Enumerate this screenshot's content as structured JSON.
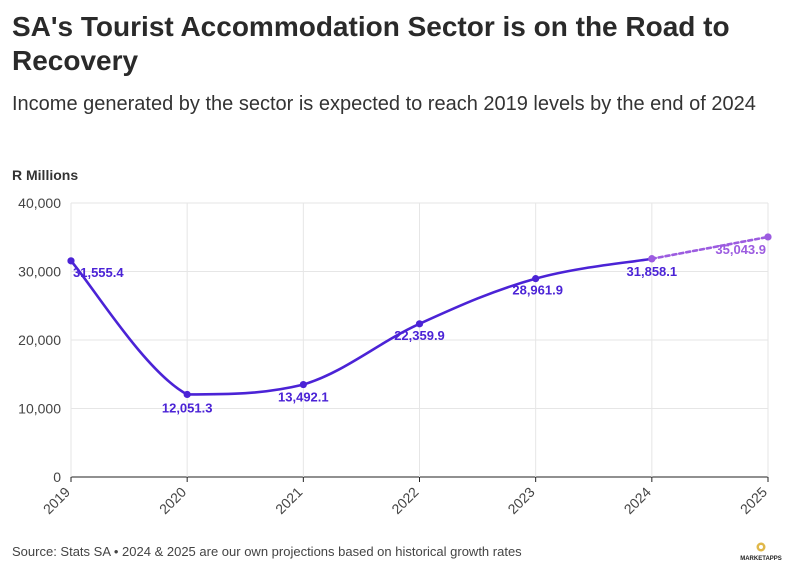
{
  "header": {
    "title": "SA's Tourist Accommodation Sector is on the Road to Recovery",
    "subtitle": "Income generated by the sector is expected to reach 2019 levels by the end of 2024"
  },
  "footer": {
    "source": "Source: Stats SA • 2024 & 2025 are our own projections based on historical growth rates",
    "logo_text": "MARKETAPPS"
  },
  "colors": {
    "actual": "#4b23d6",
    "projection": "#9c5ce0",
    "grid": "#e6e6e6",
    "axis": "#222222"
  },
  "chart_data": {
    "type": "line",
    "ylabel": "R Millions",
    "xlabel": "",
    "categories": [
      "2019",
      "2020",
      "2021",
      "2022",
      "2023",
      "2024",
      "2025"
    ],
    "y_ticks": [
      "0",
      "10,000",
      "20,000",
      "30,000",
      "40,000"
    ],
    "y_tick_values": [
      0,
      10000,
      20000,
      30000,
      40000
    ],
    "ylim": [
      0,
      40000
    ],
    "grid": true,
    "series": [
      {
        "style": "solid",
        "x": [
          "2019",
          "2020",
          "2021",
          "2022",
          "2023",
          "2024"
        ],
        "values": [
          31555.4,
          12051.3,
          13492.1,
          22359.9,
          28961.9,
          31858.1
        ],
        "labels": [
          "31,555.4",
          "12,051.3",
          "13,492.1",
          "22,359.9",
          "28,961.9",
          "31,858.1"
        ]
      },
      {
        "style": "dashed",
        "x": [
          "2024",
          "2025"
        ],
        "values": [
          31858.1,
          35043.9
        ],
        "labels": [
          "",
          "35,043.9"
        ]
      }
    ]
  }
}
